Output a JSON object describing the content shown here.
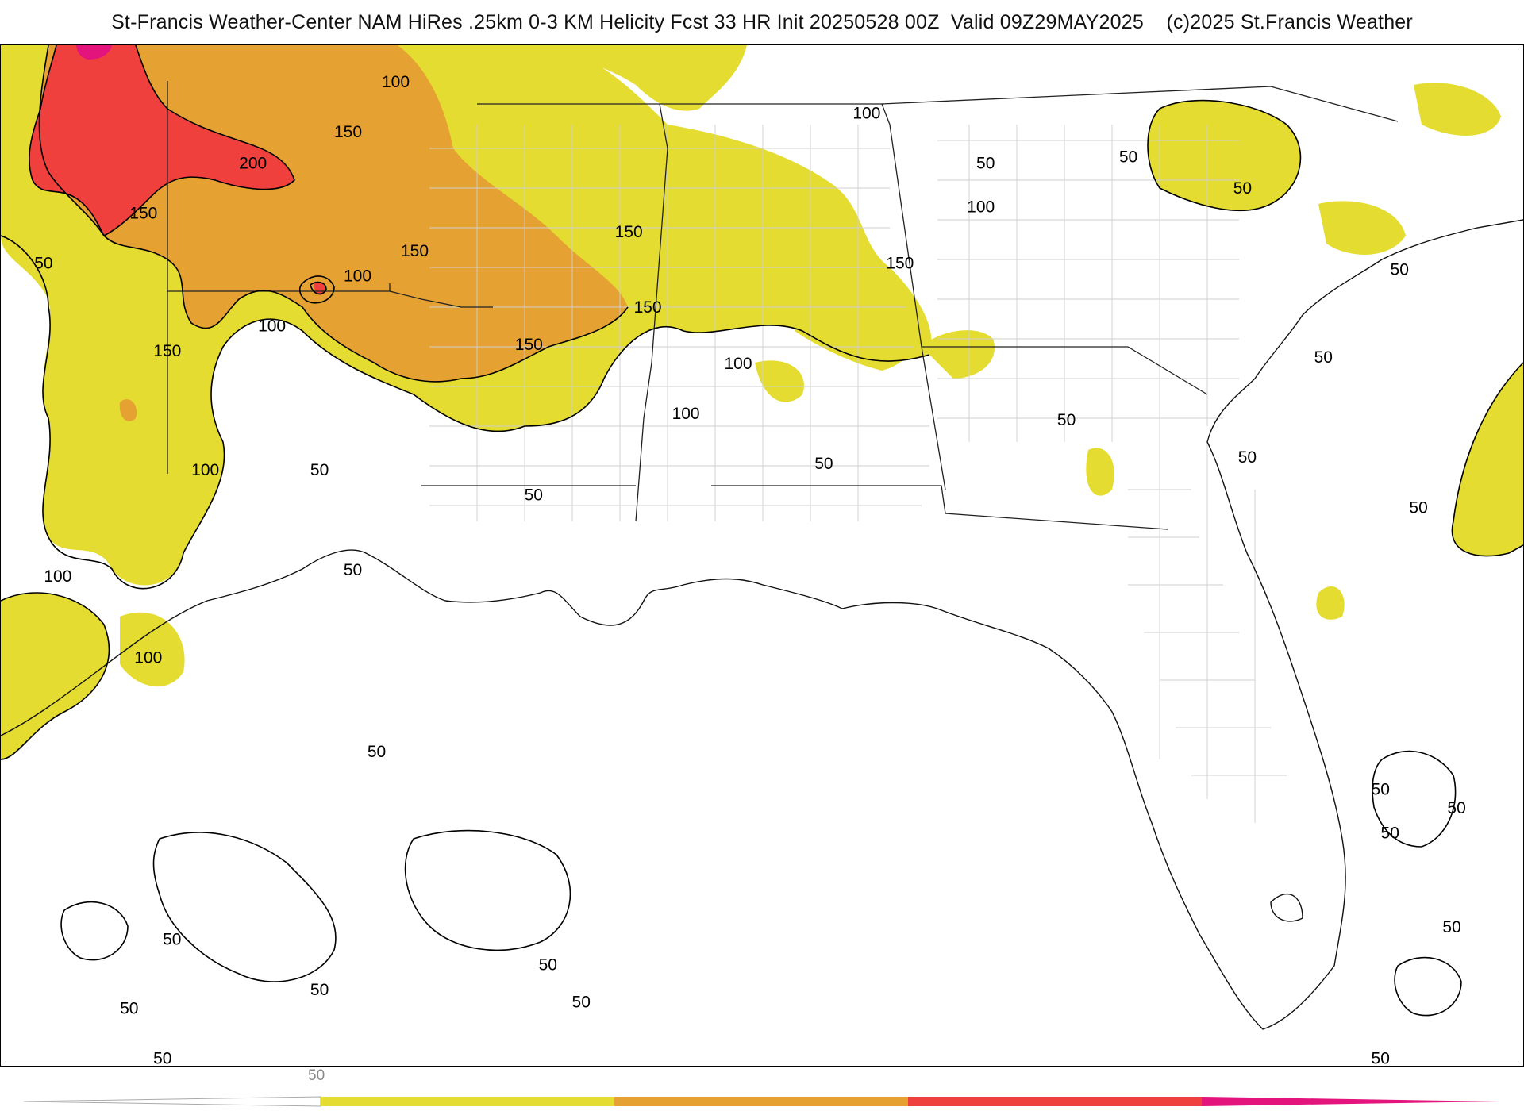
{
  "title": "St-Francis Weather-Center NAM HiRes .25km 0-3 KM Helicity Fcst 33 HR Init 20250528 00Z  Valid 09Z29MAY2025    (c)2025 St.Francis Weather",
  "colors": {
    "band_50_100": "#e5dc31",
    "band_100_150": "#e5a132",
    "band_150_200": "#f0403e",
    "band_200_plus": "#e3157d",
    "contour": "#000000",
    "state_border": "#222222",
    "county_border": "#cfcfcf"
  },
  "contour_labels": [
    {
      "text": "100",
      "lon": -98.2,
      "lat": 38.2
    },
    {
      "text": "150",
      "lon": -99.2,
      "lat": 37.4
    },
    {
      "text": "200",
      "lon": -101.2,
      "lat": 36.9
    },
    {
      "text": "150",
      "lon": -103.5,
      "lat": 36.1
    },
    {
      "text": "50",
      "lon": -105.6,
      "lat": 35.3
    },
    {
      "text": "100",
      "lon": -99.0,
      "lat": 35.1
    },
    {
      "text": "150",
      "lon": -97.8,
      "lat": 35.5
    },
    {
      "text": "150",
      "lon": -93.3,
      "lat": 35.8
    },
    {
      "text": "150",
      "lon": -92.9,
      "lat": 34.6
    },
    {
      "text": "150",
      "lon": -95.4,
      "lat": 34.0
    },
    {
      "text": "100",
      "lon": -100.8,
      "lat": 34.3
    },
    {
      "text": "150",
      "lon": -103.0,
      "lat": 33.9
    },
    {
      "text": "100",
      "lon": -91.0,
      "lat": 33.7
    },
    {
      "text": "100",
      "lon": -92.1,
      "lat": 32.9
    },
    {
      "text": "100",
      "lon": -102.2,
      "lat": 32.0
    },
    {
      "text": "50",
      "lon": -99.8,
      "lat": 32.0
    },
    {
      "text": "50",
      "lon": -95.3,
      "lat": 31.6
    },
    {
      "text": "50",
      "lon": -89.2,
      "lat": 32.1
    },
    {
      "text": "50",
      "lon": -99.1,
      "lat": 30.4
    },
    {
      "text": "100",
      "lon": -105.3,
      "lat": 30.3
    },
    {
      "text": "100",
      "lon": -103.4,
      "lat": 29.0
    },
    {
      "text": "50",
      "lon": -98.6,
      "lat": 27.5
    },
    {
      "text": "100",
      "lon": -88.3,
      "lat": 37.7
    },
    {
      "text": "50",
      "lon": -85.8,
      "lat": 36.9
    },
    {
      "text": "50",
      "lon": -82.8,
      "lat": 37.0
    },
    {
      "text": "50",
      "lon": -80.4,
      "lat": 36.5
    },
    {
      "text": "100",
      "lon": -85.9,
      "lat": 36.2
    },
    {
      "text": "150",
      "lon": -87.6,
      "lat": 35.3
    },
    {
      "text": "50",
      "lon": -84.1,
      "lat": 32.8
    },
    {
      "text": "50",
      "lon": -80.3,
      "lat": 32.2
    },
    {
      "text": "50",
      "lon": -77.1,
      "lat": 35.2
    },
    {
      "text": "50",
      "lon": -78.7,
      "lat": 33.8
    },
    {
      "text": "50",
      "lon": -76.7,
      "lat": 31.4
    },
    {
      "text": "50",
      "lon": -77.5,
      "lat": 26.9
    },
    {
      "text": "50",
      "lon": -75.9,
      "lat": 26.6
    },
    {
      "text": "50",
      "lon": -77.3,
      "lat": 26.2
    },
    {
      "text": "50",
      "lon": -76.0,
      "lat": 24.7
    },
    {
      "text": "50",
      "lon": -77.5,
      "lat": 22.6
    },
    {
      "text": "50",
      "lon": -102.9,
      "lat": 24.5
    },
    {
      "text": "50",
      "lon": -103.8,
      "lat": 23.4
    },
    {
      "text": "50",
      "lon": -99.8,
      "lat": 23.7
    },
    {
      "text": "50",
      "lon": -95.0,
      "lat": 24.1
    },
    {
      "text": "50",
      "lon": -94.3,
      "lat": 23.5
    },
    {
      "text": "50",
      "lon": -103.1,
      "lat": 22.6
    }
  ],
  "colorbar": {
    "tick_label": "50",
    "levels": [
      "50",
      "100",
      "150",
      "200",
      "250"
    ]
  }
}
